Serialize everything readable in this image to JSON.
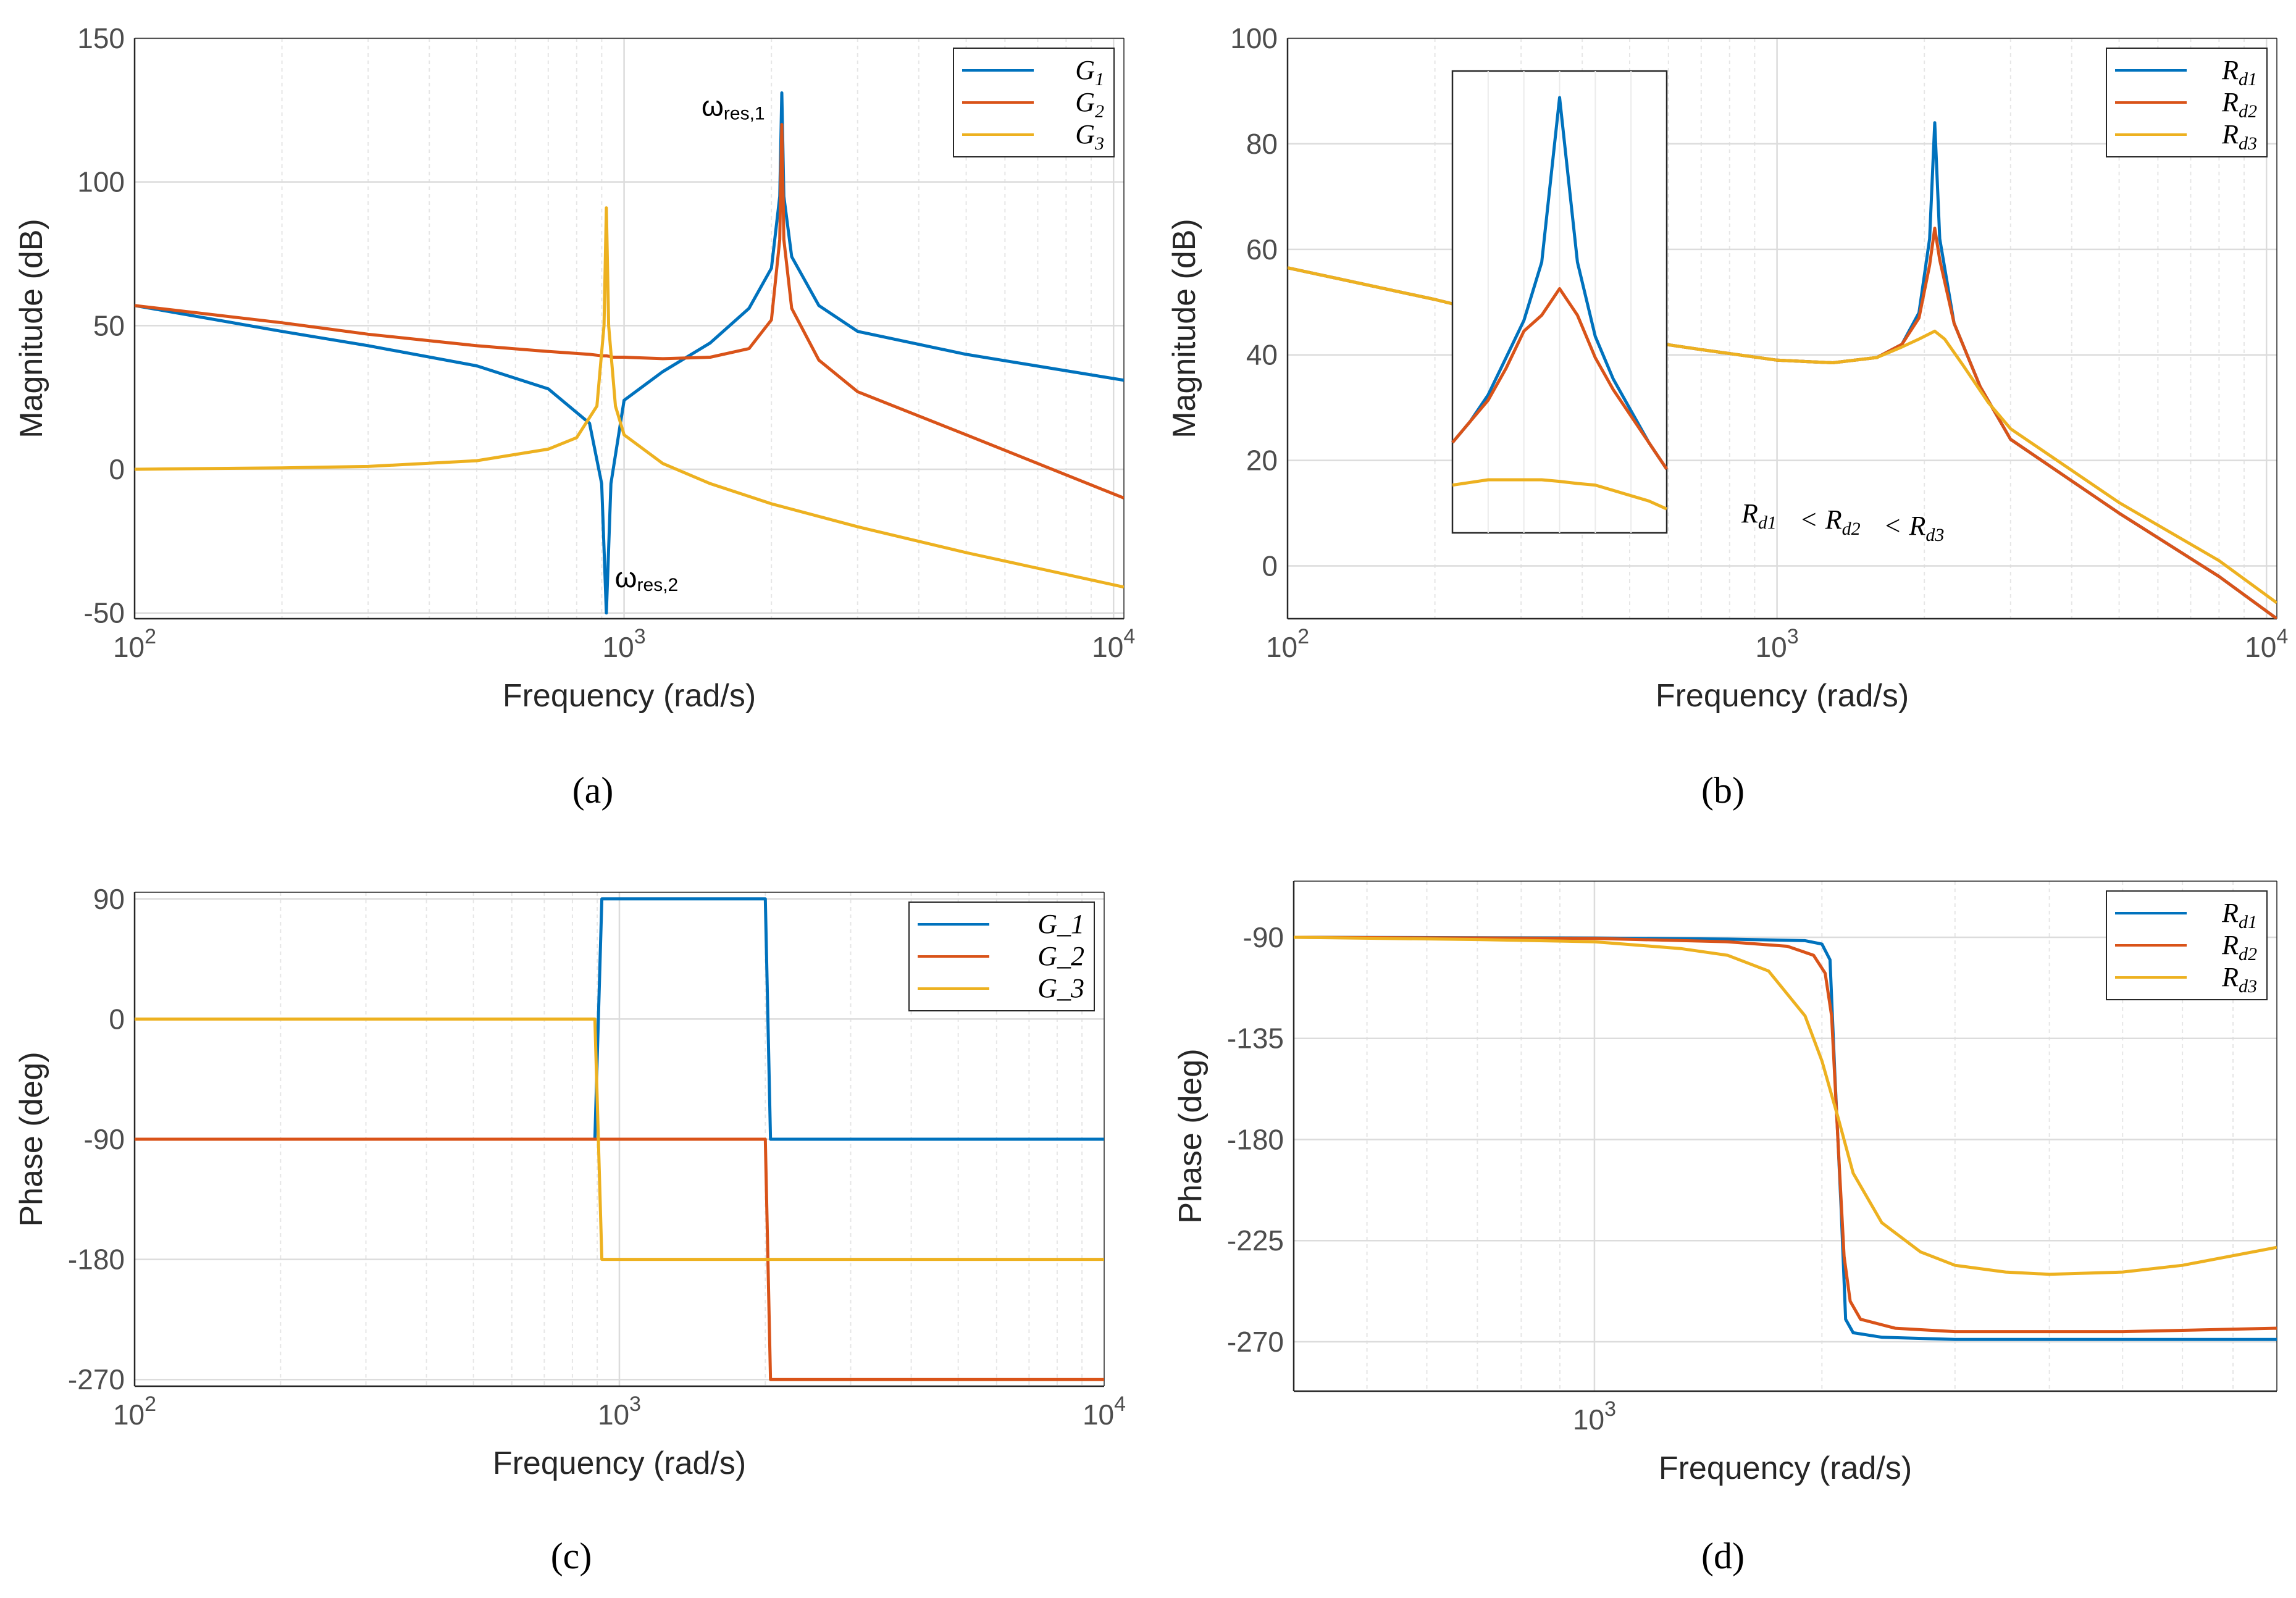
{
  "chart_data": [
    {
      "id": "a",
      "panel_label": "(a)",
      "type": "line",
      "xlabel": "Frequency  (rad/s)",
      "ylabel": "Magnitude (dB)",
      "xscale": "log",
      "xlim": [
        100,
        10500
      ],
      "ylim": [
        -52,
        150
      ],
      "xticks": [
        100,
        1000,
        10000
      ],
      "xtick_labels": [
        "10",
        "10",
        "10"
      ],
      "xtick_exponents": [
        "2",
        "3",
        "4"
      ],
      "yticks": [
        -50,
        0,
        50,
        100,
        150
      ],
      "ytick_labels": [
        "-50",
        "0",
        "50",
        "100",
        "150"
      ],
      "grid": true,
      "legend_position": "top-right",
      "series": [
        {
          "name": "G",
          "subscript": "1",
          "color": "#0072BD",
          "x": [
            100,
            200,
            300,
            500,
            700,
            850,
            900,
            920,
            940,
            1000,
            1200,
            1500,
            1800,
            2000,
            2080,
            2100,
            2120,
            2200,
            2500,
            3000,
            5000,
            10500
          ],
          "y": [
            57,
            48,
            43,
            36,
            28,
            16,
            -5,
            -50,
            -5,
            24,
            34,
            44,
            56,
            70,
            95,
            131,
            95,
            74,
            57,
            48,
            40,
            31
          ]
        },
        {
          "name": "G",
          "subscript": "2",
          "color": "#D95319",
          "x": [
            100,
            200,
            300,
            500,
            700,
            850,
            900,
            920,
            950,
            1000,
            1200,
            1500,
            1800,
            2000,
            2080,
            2100,
            2120,
            2200,
            2500,
            3000,
            5000,
            10500
          ],
          "y": [
            57,
            51,
            47,
            43,
            41,
            40,
            39.5,
            39.5,
            39,
            39,
            38.5,
            39,
            42,
            52,
            80,
            120,
            80,
            56,
            38,
            27,
            12,
            -10
          ]
        },
        {
          "name": "G",
          "subscript": "3",
          "color": "#EDB120",
          "x": [
            100,
            200,
            300,
            500,
            700,
            800,
            880,
            910,
            920,
            930,
            960,
            1000,
            1200,
            1500,
            2000,
            3000,
            5000,
            10500
          ],
          "y": [
            0,
            0.5,
            1,
            3,
            7,
            11,
            22,
            50,
            91,
            50,
            22,
            12,
            2,
            -5,
            -12,
            -20,
            -29,
            -41
          ]
        }
      ],
      "annotations": [
        {
          "text": "ω",
          "subtext": "res,1",
          "x": 2100,
          "y": 126
        },
        {
          "text": "ω",
          "subtext": "res,2",
          "x": 930,
          "y": -38
        }
      ]
    },
    {
      "id": "b",
      "panel_label": "(b)",
      "type": "line",
      "xlabel": "Frequency  (rad/s)",
      "ylabel": "Magnitude (dB)",
      "xscale": "log",
      "xlim": [
        100,
        10500
      ],
      "ylim": [
        -10,
        100
      ],
      "xticks": [
        100,
        1000,
        10000
      ],
      "xtick_labels": [
        "10",
        "10",
        "10"
      ],
      "xtick_exponents": [
        "2",
        "3",
        "4"
      ],
      "yticks": [
        0,
        20,
        40,
        60,
        80,
        100
      ],
      "ytick_labels": [
        "0",
        "20",
        "40",
        "60",
        "80",
        "100"
      ],
      "grid": true,
      "legend_position": "top-right",
      "series": [
        {
          "name": "R",
          "subscript": "d1",
          "color": "#0072BD",
          "x": [
            100,
            200,
            300,
            500,
            700,
            1000,
            1300,
            1600,
            1800,
            1950,
            2050,
            2100,
            2150,
            2300,
            2600,
            3000,
            5000,
            8000,
            10500
          ],
          "y": [
            56.5,
            50.5,
            46.5,
            43,
            41,
            39,
            38.5,
            39.5,
            42,
            48,
            62,
            84,
            62,
            46,
            34,
            24,
            10,
            -2,
            -10
          ]
        },
        {
          "name": "R",
          "subscript": "d2",
          "color": "#D95319",
          "x": [
            100,
            200,
            300,
            500,
            700,
            1000,
            1300,
            1600,
            1800,
            1950,
            2050,
            2100,
            2150,
            2300,
            2600,
            3000,
            5000,
            8000,
            10500
          ],
          "y": [
            56.5,
            50.5,
            46.5,
            43,
            41,
            39,
            38.5,
            39.5,
            42,
            47,
            57,
            64,
            58,
            46,
            34,
            24,
            10,
            -2,
            -10
          ]
        },
        {
          "name": "R",
          "subscript": "d3",
          "color": "#EDB120",
          "x": [
            100,
            200,
            300,
            500,
            700,
            1000,
            1300,
            1600,
            1800,
            1950,
            2050,
            2100,
            2200,
            2400,
            2700,
            3000,
            5000,
            8000,
            10500
          ],
          "y": [
            56.5,
            50.5,
            46.5,
            43,
            41,
            39,
            38.5,
            39.5,
            41.5,
            43,
            44,
            44.5,
            43,
            38,
            31,
            26,
            12,
            1,
            -7
          ]
        }
      ],
      "inset": {
        "series": [
          {
            "color": "#0072BD",
            "y": [
              22,
              26,
              31,
              38,
              45,
              56,
              87,
              56,
              42,
              34,
              28,
              22,
              17
            ]
          },
          {
            "color": "#D95319",
            "y": [
              22,
              26,
              30,
              36,
              43,
              46,
              51,
              46,
              38,
              32,
              27,
              22,
              17
            ]
          },
          {
            "color": "#EDB120",
            "y": [
              14,
              14.5,
              15,
              15,
              15,
              15,
              14.7,
              14.3,
              14,
              13,
              12,
              11,
              9.5
            ]
          }
        ]
      },
      "relation": {
        "parts": [
          {
            "sym": "R",
            "sub": "d1"
          },
          {
            "op": "<"
          },
          {
            "sym": "R",
            "sub": "d2"
          },
          {
            "op": "<"
          },
          {
            "sym": "R",
            "sub": "d3"
          }
        ]
      }
    },
    {
      "id": "c",
      "panel_label": "(c)",
      "type": "line",
      "xlabel": "Frequency  (rad/s)",
      "ylabel": "Phase (deg)",
      "xscale": "log",
      "xlim": [
        100,
        10000
      ],
      "ylim": [
        -275,
        95
      ],
      "xticks": [
        100,
        1000,
        10000
      ],
      "xtick_labels": [
        "10",
        "10",
        "10"
      ],
      "xtick_exponents": [
        "2",
        "3",
        "4"
      ],
      "yticks": [
        -270,
        -180,
        -90,
        0,
        90
      ],
      "ytick_labels": [
        "-270",
        "-180",
        "-90",
        "0",
        "90"
      ],
      "grid": true,
      "legend_position": "top-right",
      "series": [
        {
          "name": "G_1",
          "color": "#0072BD",
          "x": [
            100,
            890,
            920,
            2000,
            2050,
            10000
          ],
          "y": [
            -90,
            -90,
            90,
            90,
            -90,
            -90
          ]
        },
        {
          "name": "G_2",
          "color": "#D95319",
          "x": [
            100,
            2000,
            2050,
            10000
          ],
          "y": [
            -90,
            -90,
            -270,
            -270
          ]
        },
        {
          "name": "G_3",
          "color": "#EDB120",
          "x": [
            100,
            890,
            920,
            10000
          ],
          "y": [
            0,
            0,
            -180,
            -180
          ]
        }
      ]
    },
    {
      "id": "d",
      "panel_label": "(d)",
      "type": "line",
      "xlabel": "Frequency  (rad/s)",
      "ylabel": "Phase (deg)",
      "xscale": "log",
      "xlim": [
        400,
        8000
      ],
      "ylim": [
        -292,
        -65
      ],
      "xticks": [
        1000
      ],
      "xtick_labels": [
        "10"
      ],
      "xtick_exponents": [
        "3"
      ],
      "yticks": [
        -270,
        -225,
        -180,
        -135,
        -90
      ],
      "ytick_labels": [
        "-270",
        "-225",
        "-180",
        "-135",
        "-90"
      ],
      "grid": true,
      "legend_position": "top-right",
      "series": [
        {
          "name": "R",
          "subscript": "d1",
          "color": "#0072BD",
          "x": [
            400,
            1000,
            1500,
            1900,
            2000,
            2050,
            2080,
            2100,
            2120,
            2150,
            2200,
            2400,
            3000,
            8000
          ],
          "y": [
            -90,
            -90.3,
            -90.8,
            -91.5,
            -93,
            -100,
            -150,
            -180,
            -210,
            -260,
            -266,
            -268,
            -269,
            -269
          ]
        },
        {
          "name": "R",
          "subscript": "d2",
          "color": "#D95319",
          "x": [
            400,
            1000,
            1500,
            1800,
            1950,
            2020,
            2060,
            2100,
            2140,
            2180,
            2250,
            2500,
            3000,
            5000,
            8000
          ],
          "y": [
            -90,
            -90.5,
            -92,
            -94,
            -98,
            -106,
            -125,
            -180,
            -232,
            -252,
            -260,
            -264,
            -265.5,
            -265.5,
            -264
          ]
        },
        {
          "name": "R",
          "subscript": "d3",
          "color": "#EDB120",
          "x": [
            400,
            700,
            1000,
            1300,
            1500,
            1700,
            1900,
            2000,
            2100,
            2200,
            2400,
            2700,
            3000,
            3500,
            4000,
            5000,
            6000,
            8000
          ],
          "y": [
            -90,
            -91,
            -92,
            -95,
            -98,
            -105,
            -125,
            -145,
            -170,
            -195,
            -217,
            -230,
            -236,
            -239,
            -240,
            -239,
            -236,
            -228
          ]
        }
      ]
    }
  ]
}
